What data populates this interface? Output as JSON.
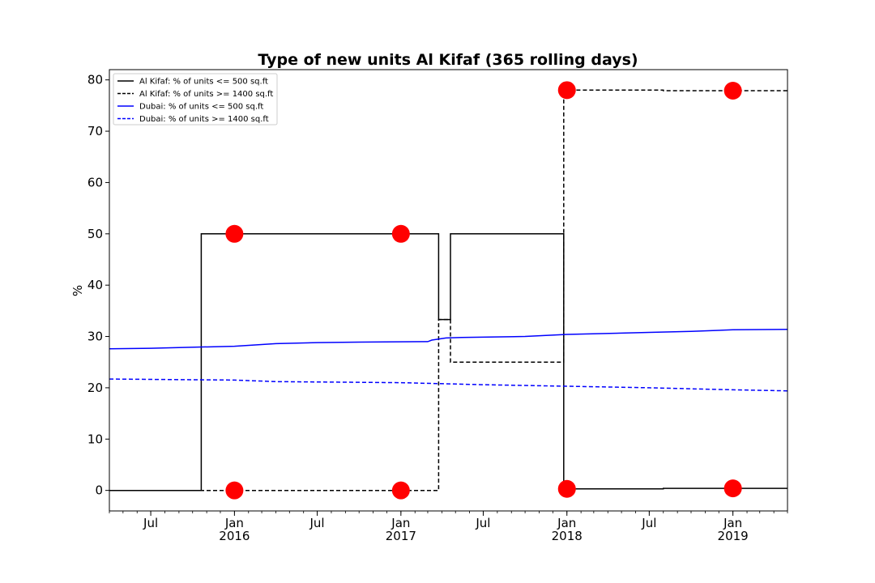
{
  "chart_data": {
    "type": "line",
    "title": "Type of new units Al Kifaf (365 rolling days)",
    "xlabel": "",
    "ylabel": "%",
    "xlim": [
      "2015-04-01",
      "2019-05-01"
    ],
    "ylim": [
      -4,
      82
    ],
    "y_ticks": [
      0,
      10,
      20,
      30,
      40,
      50,
      60,
      70,
      80
    ],
    "x_ticks": [
      {
        "date": "2015-07-01",
        "label": "Jul",
        "year": ""
      },
      {
        "date": "2016-01-01",
        "label": "Jan",
        "year": "2016"
      },
      {
        "date": "2016-07-01",
        "label": "Jul",
        "year": ""
      },
      {
        "date": "2017-01-01",
        "label": "Jan",
        "year": "2017"
      },
      {
        "date": "2017-07-01",
        "label": "Jul",
        "year": ""
      },
      {
        "date": "2018-01-01",
        "label": "Jan",
        "year": "2018"
      },
      {
        "date": "2018-07-01",
        "label": "Jul",
        "year": ""
      },
      {
        "date": "2019-01-01",
        "label": "Jan",
        "year": "2019"
      }
    ],
    "legend_position": "top-left",
    "grid": false,
    "series": [
      {
        "name": "Al Kifaf: % of units <= 500 sq.ft",
        "color": "#000000",
        "style": "solid",
        "step": true,
        "points": [
          {
            "x": "2015-04-01",
            "y": 0
          },
          {
            "x": "2015-10-20",
            "y": 50
          },
          {
            "x": "2017-03-25",
            "y": 33.3
          },
          {
            "x": "2017-04-20",
            "y": 50
          },
          {
            "x": "2017-12-25",
            "y": 0.3
          },
          {
            "x": "2018-08-01",
            "y": 0.4
          },
          {
            "x": "2019-05-01",
            "y": 0.4
          }
        ]
      },
      {
        "name": "Al Kifaf: % of units >= 1400 sq.ft",
        "color": "#000000",
        "style": "dashed",
        "step": true,
        "points": [
          {
            "x": "2015-04-01",
            "y": 0
          },
          {
            "x": "2017-03-25",
            "y": 33.3
          },
          {
            "x": "2017-04-20",
            "y": 25
          },
          {
            "x": "2017-12-25",
            "y": 78
          },
          {
            "x": "2018-08-01",
            "y": 77.9
          },
          {
            "x": "2019-05-01",
            "y": 77.9
          }
        ]
      },
      {
        "name": "Dubai: % of units <= 500 sq.ft",
        "color": "#0000ff",
        "style": "solid",
        "step": false,
        "points": [
          {
            "x": "2015-04-01",
            "y": 27.6
          },
          {
            "x": "2015-07-01",
            "y": 27.7
          },
          {
            "x": "2016-01-01",
            "y": 28.1
          },
          {
            "x": "2016-04-01",
            "y": 28.6
          },
          {
            "x": "2016-07-01",
            "y": 28.8
          },
          {
            "x": "2016-10-01",
            "y": 28.9
          },
          {
            "x": "2017-03-01",
            "y": 29.0
          },
          {
            "x": "2017-03-10",
            "y": 29.3
          },
          {
            "x": "2017-04-10",
            "y": 29.7
          },
          {
            "x": "2017-05-15",
            "y": 29.8
          },
          {
            "x": "2017-10-01",
            "y": 30.0
          },
          {
            "x": "2018-01-01",
            "y": 30.4
          },
          {
            "x": "2018-07-01",
            "y": 30.8
          },
          {
            "x": "2018-10-01",
            "y": 31.0
          },
          {
            "x": "2019-01-01",
            "y": 31.3
          },
          {
            "x": "2019-05-01",
            "y": 31.4
          }
        ]
      },
      {
        "name": "Dubai: % of units >= 1400 sq.ft",
        "color": "#0000ff",
        "style": "dashed",
        "step": false,
        "points": [
          {
            "x": "2015-04-01",
            "y": 21.7
          },
          {
            "x": "2016-01-01",
            "y": 21.5
          },
          {
            "x": "2016-04-01",
            "y": 21.2
          },
          {
            "x": "2017-01-01",
            "y": 21.0
          },
          {
            "x": "2017-07-01",
            "y": 20.6
          },
          {
            "x": "2018-01-01",
            "y": 20.3
          },
          {
            "x": "2018-07-01",
            "y": 20.0
          },
          {
            "x": "2019-01-01",
            "y": 19.6
          },
          {
            "x": "2019-05-01",
            "y": 19.4
          }
        ]
      }
    ],
    "markers": {
      "color": "#ff0000",
      "points": [
        {
          "x": "2016-01-01",
          "y": 50
        },
        {
          "x": "2016-01-01",
          "y": 0
        },
        {
          "x": "2017-01-01",
          "y": 50
        },
        {
          "x": "2017-01-01",
          "y": 0
        },
        {
          "x": "2018-01-01",
          "y": 78
        },
        {
          "x": "2018-01-01",
          "y": 0.3
        },
        {
          "x": "2019-01-01",
          "y": 77.9
        },
        {
          "x": "2019-01-01",
          "y": 0.4
        }
      ]
    }
  }
}
